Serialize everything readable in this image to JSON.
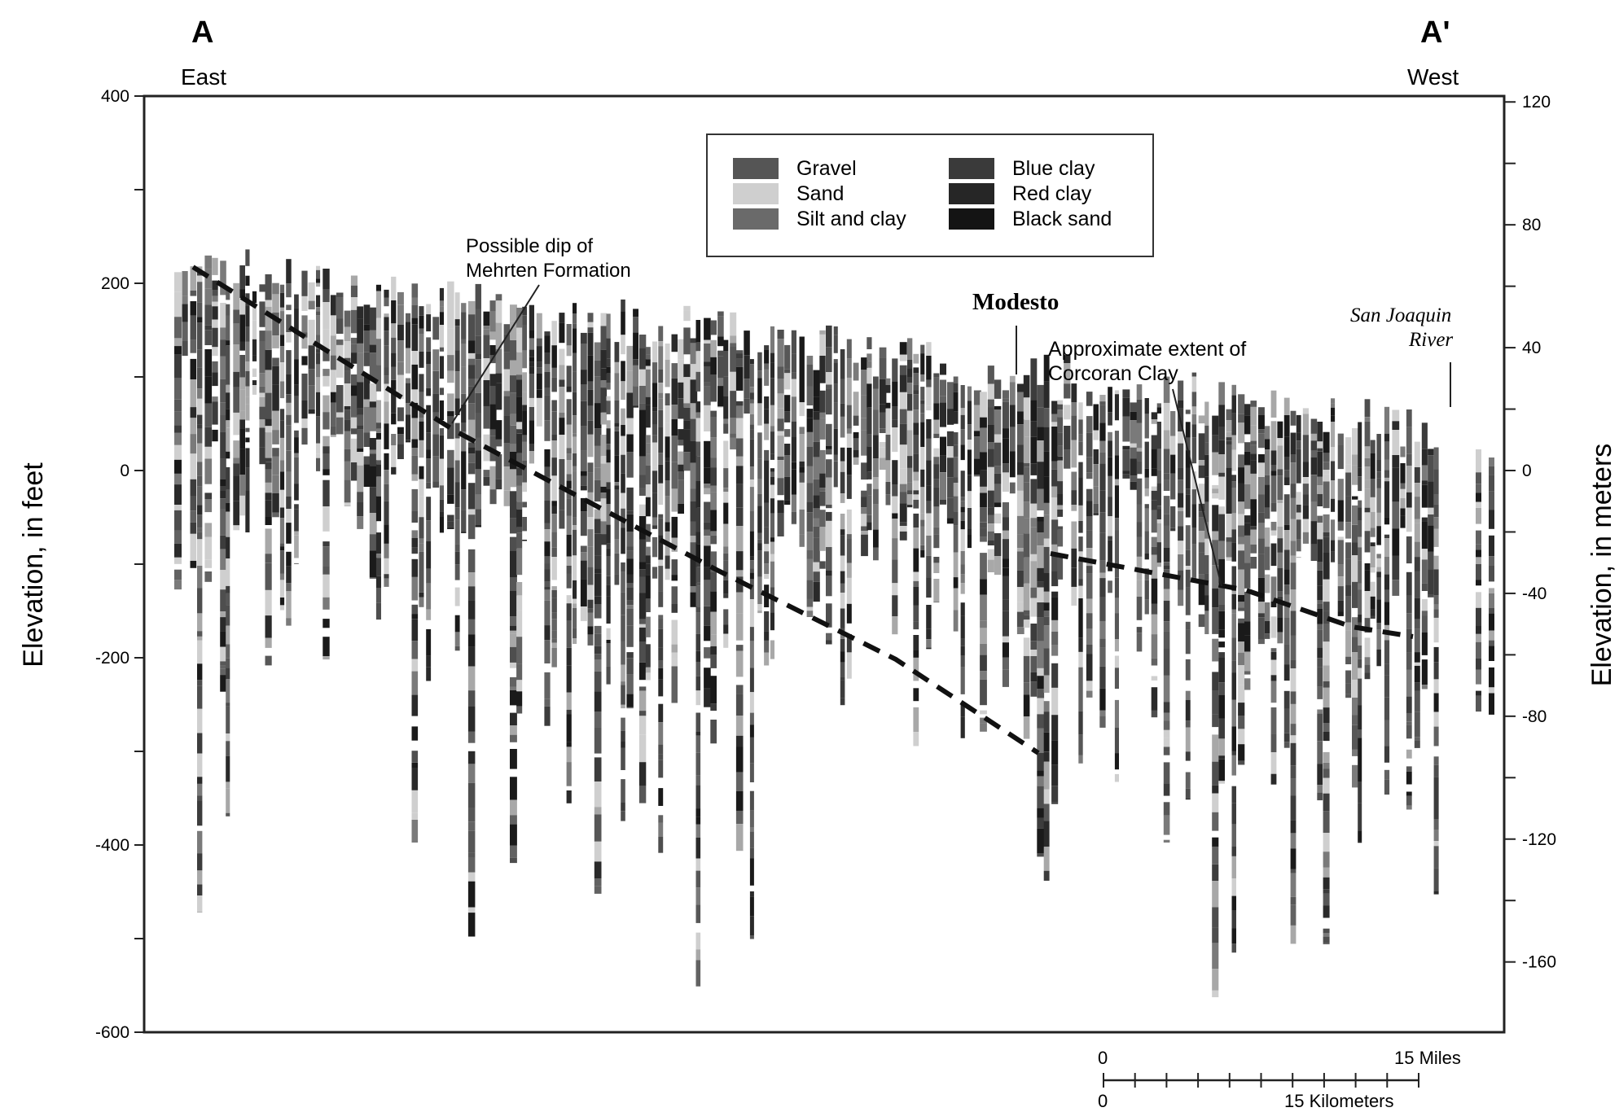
{
  "section": {
    "start_letter": "A",
    "end_letter": "A'",
    "start_direction": "East",
    "end_direction": "West"
  },
  "axes": {
    "left_label": "Elevation, in feet",
    "right_label": "Elevation, in meters",
    "left_ticks": [
      400,
      200,
      0,
      -200,
      -400,
      -600
    ],
    "left_minor_ticks": [
      300,
      100,
      -100,
      -300,
      -500
    ],
    "left_range": [
      -600,
      400
    ],
    "right_ticks": [
      120,
      80,
      40,
      0,
      -40,
      -80,
      -120,
      -160
    ],
    "right_minor_ticks": [
      100,
      60,
      20,
      -20,
      -60,
      -100,
      -140
    ]
  },
  "legend": {
    "items": [
      {
        "label": "Gravel",
        "color": "#555555"
      },
      {
        "label": "Sand",
        "color": "#cfcfcf"
      },
      {
        "label": "Silt and clay",
        "color": "#6a6a6a"
      },
      {
        "label": "Blue clay",
        "color": "#3a3a3a"
      },
      {
        "label": "Red clay",
        "color": "#262626"
      },
      {
        "label": "Black sand",
        "color": "#141414"
      }
    ]
  },
  "annotations": {
    "mehrten_line1": "Possible dip of",
    "mehrten_line2": "Mehrten Formation",
    "modesto": "Modesto",
    "corcoran_line1": "Approximate extent of",
    "corcoran_line2": "Corcoran Clay",
    "river_line1": "San Joaquin",
    "river_line2": "River"
  },
  "scale_bar": {
    "miles_zero": "0",
    "miles_label": "15 Miles",
    "km_zero": "0",
    "km_label": "15 Kilometers"
  },
  "colors": {
    "frame": "#222222",
    "dashed_line": "#111111"
  }
}
